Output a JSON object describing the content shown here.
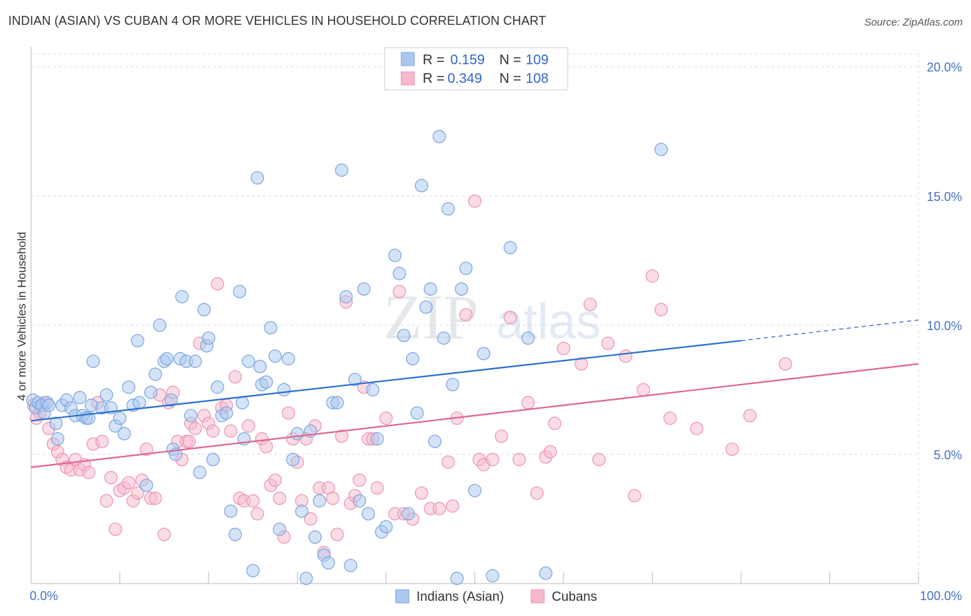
{
  "title": "INDIAN (ASIAN) VS CUBAN 4 OR MORE VEHICLES IN HOUSEHOLD CORRELATION CHART",
  "source": "Source: ZipAtlas.com",
  "watermark": {
    "zip": "ZIP",
    "atlas": "atlas"
  },
  "colors": {
    "blue_fill": "#aac8f0",
    "blue_stroke": "#7aa6de",
    "blue_line": "#2b6fce",
    "pink_fill": "#f6b9cc",
    "pink_stroke": "#ec93b0",
    "pink_line": "#e0668f",
    "grid": "#dcdcdc",
    "tick_label": "#4472c4"
  },
  "legend": {
    "rows": [
      {
        "r_label": "R =",
        "r_value": "0.159",
        "n_label": "N =",
        "n_value": "109"
      },
      {
        "r_label": "R =",
        "r_value": "0.349",
        "n_label": "N =",
        "n_value": "108"
      }
    ]
  },
  "bottom_legend": [
    "Indians (Asian)",
    "Cubans"
  ],
  "chart_data": {
    "type": "scatter",
    "title": "INDIAN (ASIAN) VS CUBAN 4 OR MORE VEHICLES IN HOUSEHOLD CORRELATION CHART",
    "xlabel": "",
    "ylabel": "4 or more Vehicles in Household",
    "xlim": [
      0,
      100
    ],
    "ylim": [
      0,
      20.5
    ],
    "x_ticks_labels": [
      "0.0%",
      "100.0%"
    ],
    "y_ticks": [
      5,
      10,
      15,
      20
    ],
    "y_tick_labels": [
      "5.0%",
      "10.0%",
      "15.0%",
      "20.0%"
    ],
    "grid": true,
    "legend_position": "top-center",
    "series": [
      {
        "name": "Indians (Asian)",
        "r": 0.159,
        "n": 109,
        "trend": {
          "x0": 0,
          "y0": 6.3,
          "x1": 80,
          "y1": 9.4,
          "dashed_to_x": 100,
          "dashed_to_y": 10.2
        },
        "points": [
          [
            0.2,
            7.1
          ],
          [
            0.5,
            6.8
          ],
          [
            0.8,
            7.0
          ],
          [
            1.2,
            6.9
          ],
          [
            1.5,
            6.6
          ],
          [
            1.8,
            7.0
          ],
          [
            2,
            6.9
          ],
          [
            2.8,
            6.2
          ],
          [
            3,
            5.6
          ],
          [
            3.5,
            6.9
          ],
          [
            4,
            7.1
          ],
          [
            4.5,
            6.8
          ],
          [
            5,
            6.5
          ],
          [
            5.5,
            7.2
          ],
          [
            5.8,
            6.5
          ],
          [
            6.2,
            6.4
          ],
          [
            6.5,
            6.4
          ],
          [
            6.8,
            6.9
          ],
          [
            7,
            8.6
          ],
          [
            8,
            6.8
          ],
          [
            8.5,
            7.3
          ],
          [
            9,
            6.8
          ],
          [
            9.5,
            6.1
          ],
          [
            10,
            6.4
          ],
          [
            10.5,
            5.8
          ],
          [
            11,
            7.6
          ],
          [
            11.5,
            6.9
          ],
          [
            12,
            9.4
          ],
          [
            12.2,
            7.0
          ],
          [
            13,
            3.8
          ],
          [
            13.5,
            7.4
          ],
          [
            14,
            8.1
          ],
          [
            14.5,
            10.0
          ],
          [
            15,
            8.6
          ],
          [
            15.3,
            8.7
          ],
          [
            15.8,
            7.1
          ],
          [
            16,
            5.2
          ],
          [
            16.3,
            5.0
          ],
          [
            16.8,
            8.7
          ],
          [
            17,
            11.1
          ],
          [
            17.5,
            8.6
          ],
          [
            18,
            6.5
          ],
          [
            18.5,
            8.6
          ],
          [
            19,
            4.3
          ],
          [
            19.5,
            10.6
          ],
          [
            19.8,
            9.2
          ],
          [
            20,
            9.5
          ],
          [
            20.5,
            4.8
          ],
          [
            21,
            7.6
          ],
          [
            21.5,
            6.5
          ],
          [
            22,
            6.6
          ],
          [
            22.5,
            2.8
          ],
          [
            23,
            1.9
          ],
          [
            23.5,
            11.3
          ],
          [
            23.8,
            7.0
          ],
          [
            24,
            5.6
          ],
          [
            24.5,
            8.6
          ],
          [
            25,
            0.5
          ],
          [
            25.5,
            15.7
          ],
          [
            25.8,
            8.4
          ],
          [
            26,
            7.7
          ],
          [
            26.5,
            7.8
          ],
          [
            27,
            9.9
          ],
          [
            27.5,
            8.8
          ],
          [
            28,
            2.1
          ],
          [
            28.5,
            7.5
          ],
          [
            29,
            8.7
          ],
          [
            29.5,
            4.8
          ],
          [
            30,
            5.8
          ],
          [
            30.5,
            2.8
          ],
          [
            31,
            0.2
          ],
          [
            31.5,
            5.9
          ],
          [
            32,
            1.8
          ],
          [
            32.5,
            3.2
          ],
          [
            33,
            1.1
          ],
          [
            33.5,
            0.8
          ],
          [
            34,
            7.0
          ],
          [
            34.5,
            7.0
          ],
          [
            35,
            16.0
          ],
          [
            35.5,
            11.1
          ],
          [
            36,
            0.7
          ],
          [
            36.5,
            7.9
          ],
          [
            37,
            3.2
          ],
          [
            37.5,
            11.4
          ],
          [
            38,
            2.7
          ],
          [
            38.5,
            7.5
          ],
          [
            39,
            5.6
          ],
          [
            39.5,
            2.0
          ],
          [
            40,
            2.2
          ],
          [
            41,
            12.7
          ],
          [
            41.5,
            12.0
          ],
          [
            42,
            9.6
          ],
          [
            42.5,
            2.7
          ],
          [
            43,
            8.7
          ],
          [
            43.5,
            6.6
          ],
          [
            44,
            15.4
          ],
          [
            44.5,
            10.7
          ],
          [
            45,
            11.4
          ],
          [
            45.5,
            5.5
          ],
          [
            46,
            17.3
          ],
          [
            46.5,
            9.5
          ],
          [
            47,
            14.5
          ],
          [
            47.5,
            7.7
          ],
          [
            48,
            0.2
          ],
          [
            48.5,
            11.4
          ],
          [
            49,
            12.2
          ],
          [
            50,
            3.6
          ],
          [
            51,
            8.9
          ],
          [
            52,
            0.3
          ],
          [
            54,
            13.0
          ],
          [
            56,
            9.5
          ],
          [
            58,
            0.4
          ],
          [
            71,
            16.8
          ]
        ]
      },
      {
        "name": "Cubans",
        "r": 0.349,
        "n": 108,
        "trend": {
          "x0": 0,
          "y0": 4.5,
          "x1": 100,
          "y1": 8.5
        },
        "points": [
          [
            0.3,
            6.9
          ],
          [
            0.6,
            6.4
          ],
          [
            1,
            6.6
          ],
          [
            1.5,
            7.0
          ],
          [
            2,
            6.0
          ],
          [
            2.5,
            5.4
          ],
          [
            3,
            5.1
          ],
          [
            3.5,
            4.8
          ],
          [
            4,
            4.5
          ],
          [
            4.5,
            4.4
          ],
          [
            5,
            4.8
          ],
          [
            5.5,
            4.4
          ],
          [
            6,
            4.6
          ],
          [
            6.5,
            4.3
          ],
          [
            7,
            5.4
          ],
          [
            7.5,
            7.0
          ],
          [
            8,
            5.5
          ],
          [
            8.5,
            3.2
          ],
          [
            9,
            4.1
          ],
          [
            9.5,
            2.1
          ],
          [
            10,
            3.6
          ],
          [
            10.5,
            3.7
          ],
          [
            11,
            3.9
          ],
          [
            11.5,
            3.2
          ],
          [
            12,
            3.5
          ],
          [
            12.5,
            4.0
          ],
          [
            13,
            5.2
          ],
          [
            13.5,
            3.3
          ],
          [
            14,
            3.3
          ],
          [
            14.5,
            7.3
          ],
          [
            15,
            1.9
          ],
          [
            15.5,
            7.0
          ],
          [
            16,
            7.4
          ],
          [
            16.5,
            5.5
          ],
          [
            17,
            4.8
          ],
          [
            17.5,
            5.5
          ],
          [
            17.8,
            5.5
          ],
          [
            18,
            6.2
          ],
          [
            18.5,
            6.0
          ],
          [
            19,
            9.3
          ],
          [
            19.5,
            6.5
          ],
          [
            20,
            6.2
          ],
          [
            20.5,
            5.9
          ],
          [
            21,
            11.6
          ],
          [
            21.5,
            6.8
          ],
          [
            22,
            6.9
          ],
          [
            22.5,
            5.9
          ],
          [
            23,
            8.0
          ],
          [
            23.5,
            3.3
          ],
          [
            24,
            3.2
          ],
          [
            24.5,
            6.1
          ],
          [
            25,
            3.2
          ],
          [
            25.5,
            2.7
          ],
          [
            26,
            5.6
          ],
          [
            26.5,
            5.3
          ],
          [
            27,
            3.8
          ],
          [
            27.5,
            4.0
          ],
          [
            28,
            3.3
          ],
          [
            28.5,
            1.8
          ],
          [
            29,
            6.6
          ],
          [
            29.5,
            5.6
          ],
          [
            30,
            4.7
          ],
          [
            30.5,
            3.2
          ],
          [
            31,
            5.6
          ],
          [
            31.5,
            2.5
          ],
          [
            32,
            6.1
          ],
          [
            32.5,
            3.7
          ],
          [
            33,
            1.2
          ],
          [
            33.5,
            3.7
          ],
          [
            34,
            3.3
          ],
          [
            34.5,
            1.9
          ],
          [
            35,
            5.7
          ],
          [
            35.5,
            10.9
          ],
          [
            36,
            3.1
          ],
          [
            36.5,
            3.4
          ],
          [
            37,
            4.0
          ],
          [
            37.5,
            7.6
          ],
          [
            38,
            5.6
          ],
          [
            38.5,
            5.6
          ],
          [
            39,
            3.7
          ],
          [
            40,
            6.4
          ],
          [
            41,
            2.7
          ],
          [
            41.5,
            11.3
          ],
          [
            42,
            2.7
          ],
          [
            43,
            2.5
          ],
          [
            44,
            3.5
          ],
          [
            45,
            2.9
          ],
          [
            46,
            2.9
          ],
          [
            47,
            4.7
          ],
          [
            47.5,
            3.0
          ],
          [
            48,
            6.4
          ],
          [
            49,
            10.4
          ],
          [
            50,
            14.8
          ],
          [
            50.5,
            4.8
          ],
          [
            51,
            4.6
          ],
          [
            52,
            4.8
          ],
          [
            53,
            5.7
          ],
          [
            54,
            10.3
          ],
          [
            55,
            4.8
          ],
          [
            56,
            7.0
          ],
          [
            57,
            3.5
          ],
          [
            58,
            4.9
          ],
          [
            58.5,
            5.1
          ],
          [
            59,
            6.2
          ],
          [
            60,
            9.1
          ],
          [
            62,
            8.5
          ],
          [
            63,
            10.8
          ],
          [
            64,
            4.8
          ],
          [
            65,
            9.3
          ],
          [
            67,
            8.8
          ],
          [
            68,
            3.4
          ],
          [
            69,
            7.5
          ],
          [
            70,
            11.9
          ],
          [
            71,
            10.6
          ],
          [
            72,
            6.4
          ],
          [
            75,
            6.0
          ],
          [
            79,
            5.2
          ],
          [
            81,
            6.5
          ],
          [
            85,
            8.5
          ]
        ]
      }
    ]
  }
}
